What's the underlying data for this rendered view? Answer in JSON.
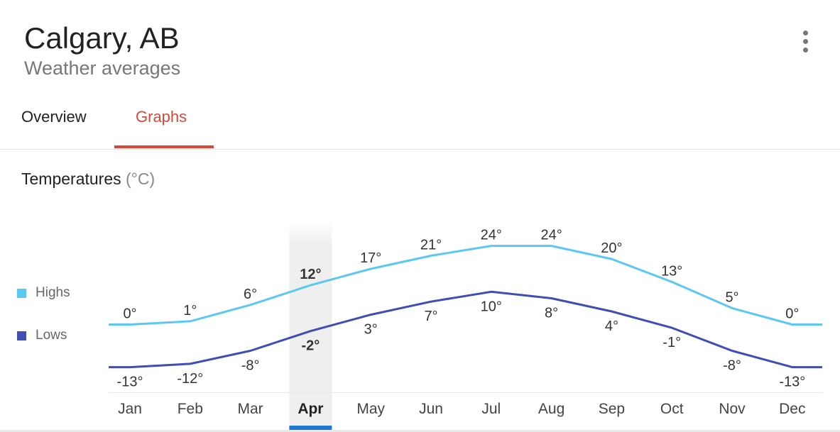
{
  "header": {
    "title": "Calgary, AB",
    "subtitle": "Weather averages"
  },
  "menu": {
    "icon": "more-vert-icon"
  },
  "tabs": [
    {
      "label": "Overview",
      "active": false
    },
    {
      "label": "Graphs",
      "active": true
    }
  ],
  "section": {
    "title": "Temperatures",
    "unit": "(°C)"
  },
  "colors": {
    "highs": "#5bc8f4",
    "lows": "#3f4db5",
    "tab_active": "#d9473a",
    "selected_bar": "#1e78d2"
  },
  "chart_data": {
    "type": "line",
    "categories": [
      "Jan",
      "Feb",
      "Mar",
      "Apr",
      "May",
      "Jun",
      "Jul",
      "Aug",
      "Sep",
      "Oct",
      "Nov",
      "Dec"
    ],
    "series": [
      {
        "name": "Highs",
        "values": [
          0,
          1,
          6,
          12,
          17,
          21,
          24,
          24,
          20,
          13,
          5,
          0
        ]
      },
      {
        "name": "Lows",
        "values": [
          -13,
          -12,
          -8,
          -2,
          3,
          7,
          10,
          8,
          4,
          -1,
          -8,
          -13
        ]
      }
    ],
    "selected_index": 3,
    "value_suffix": "°",
    "legend": "left"
  }
}
